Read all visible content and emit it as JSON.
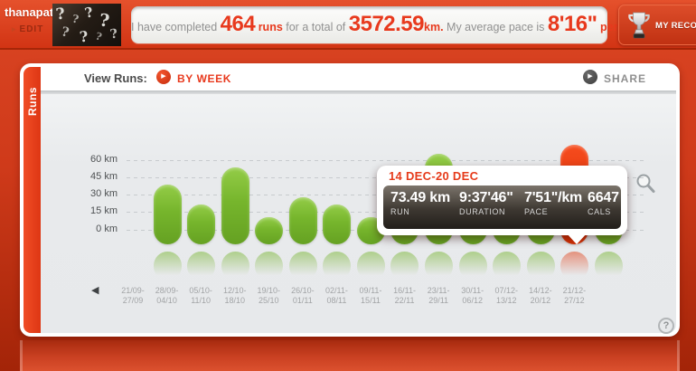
{
  "profile": {
    "username": "thanapat",
    "edit_label": "EDIT",
    "avatar_motif": "?"
  },
  "stats_banner": {
    "parts": [
      {
        "text": "I have completed ",
        "style": "plain"
      },
      {
        "text": "464",
        "style": "big"
      },
      {
        "text": " runs",
        "style": "small"
      },
      {
        "text": " for a total of ",
        "style": "plain"
      },
      {
        "text": "3572.59",
        "style": "big"
      },
      {
        "text": "km.",
        "style": "small"
      },
      {
        "text": " My average pace is ",
        "style": "plain"
      },
      {
        "text": "8'16\"",
        "style": "big"
      },
      {
        "text": " per km.",
        "style": "small"
      }
    ]
  },
  "records": {
    "label": "MY RECORDS"
  },
  "panel": {
    "tab_label": "Runs",
    "view_runs_label": "View Runs:",
    "view_mode_label": "BY WEEK",
    "share_label": "SHARE",
    "help_glyph": "?"
  },
  "icons": {
    "play_glyph": "▶",
    "back_glyph": "◀",
    "edit_arrow_glyph": "▸"
  },
  "colors": {
    "accent_red": "#e8391d",
    "bar_green": "#76b52c",
    "highlight_red": "#e53a0e",
    "chart_bg": "#e8eaec"
  },
  "chart_data": {
    "type": "bar",
    "title": "",
    "ylabel": "km",
    "ylim": [
      0,
      75
    ],
    "grid": "dashed-horizontal",
    "legend": "none",
    "yticks": [
      {
        "label": "60 km",
        "value": 60
      },
      {
        "label": "45 km",
        "value": 45
      },
      {
        "label": "30 km",
        "value": 30
      },
      {
        "label": "15 km",
        "value": 15
      },
      {
        "label": "0 km",
        "value": 0
      }
    ],
    "categories": [
      [
        "21/09-",
        "27/09"
      ],
      [
        "28/09-",
        "04/10"
      ],
      [
        "05/10-",
        "11/10"
      ],
      [
        "12/10-",
        "18/10"
      ],
      [
        "19/10-",
        "25/10"
      ],
      [
        "26/10-",
        "01/11"
      ],
      [
        "02/11-",
        "08/11"
      ],
      [
        "09/11-",
        "15/11"
      ],
      [
        "16/11-",
        "22/11"
      ],
      [
        "23/11-",
        "29/11"
      ],
      [
        "30/11-",
        "06/12"
      ],
      [
        "07/12-",
        "13/12"
      ],
      [
        "14/12-",
        "20/12"
      ],
      [
        "21/12-",
        "27/12"
      ]
    ],
    "values": [
      39,
      22,
      54,
      11,
      28,
      22,
      10.5,
      25,
      66,
      30,
      28,
      32,
      73.49,
      33
    ],
    "occluded_indices": [
      7,
      9,
      10,
      11,
      13
    ],
    "highlight_index": 12,
    "tooltip": {
      "title": "14 DEC-20 DEC",
      "stats": [
        {
          "value": "73.49 km",
          "label": "RUN"
        },
        {
          "value": "9:37'46\"",
          "label": "DURATION"
        },
        {
          "value": "7'51\"/km",
          "label": "PACE"
        },
        {
          "value": "6647",
          "label": "CALS"
        }
      ]
    }
  }
}
